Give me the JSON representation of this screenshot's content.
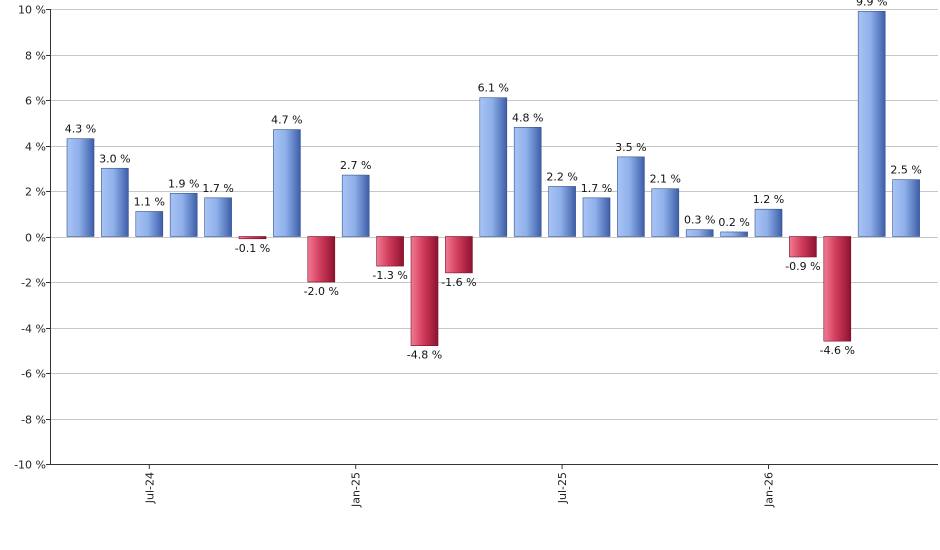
{
  "chart_data": {
    "type": "bar",
    "title": "",
    "xlabel": "",
    "ylabel": "",
    "ylim": [
      -10,
      10
    ],
    "yticks": [
      10,
      8,
      6,
      4,
      2,
      0,
      -2,
      -4,
      -6,
      -8,
      -10
    ],
    "ytick_labels": [
      "10 %",
      "8 %",
      "6 %",
      "4 %",
      "2 %",
      "0 %",
      "-2 %",
      "-4 %",
      "-6 %",
      "-8 %",
      "-10 %"
    ],
    "grid": true,
    "legend": "none",
    "values": [
      4.3,
      3.0,
      1.1,
      1.9,
      1.7,
      -0.1,
      4.7,
      -2.0,
      2.7,
      -1.3,
      -4.8,
      -1.6,
      6.1,
      4.8,
      2.2,
      1.7,
      3.5,
      2.1,
      0.3,
      0.2,
      1.2,
      -0.9,
      -4.6,
      9.9,
      2.5
    ],
    "data_labels": [
      "4.3 %",
      "3.0 %",
      "1.1 %",
      "1.9 %",
      "1.7 %",
      "-0.1 %",
      "4.7 %",
      "-2.0 %",
      "2.7 %",
      "-1.3 %",
      "-4.8 %",
      "-1.6 %",
      "6.1 %",
      "4.8 %",
      "2.2 %",
      "1.7 %",
      "3.5 %",
      "2.1 %",
      "0.3 %",
      "0.2 %",
      "1.2 %",
      "-0.9 %",
      "-4.6 %",
      "9.9 %",
      "2.5 %"
    ],
    "x_ticks": [
      {
        "label": "Jul-24",
        "bar_index": 2
      },
      {
        "label": "Jan-25",
        "bar_index": 8
      },
      {
        "label": "Jul-25",
        "bar_index": 14
      },
      {
        "label": "Jan-26",
        "bar_index": 20
      }
    ],
    "colors": {
      "positive_light": "#a9c4f5",
      "positive_dark": "#3d5ea8",
      "negative_light": "#f07b92",
      "negative_dark": "#8e1230",
      "grid": "#c8c8c8"
    }
  }
}
